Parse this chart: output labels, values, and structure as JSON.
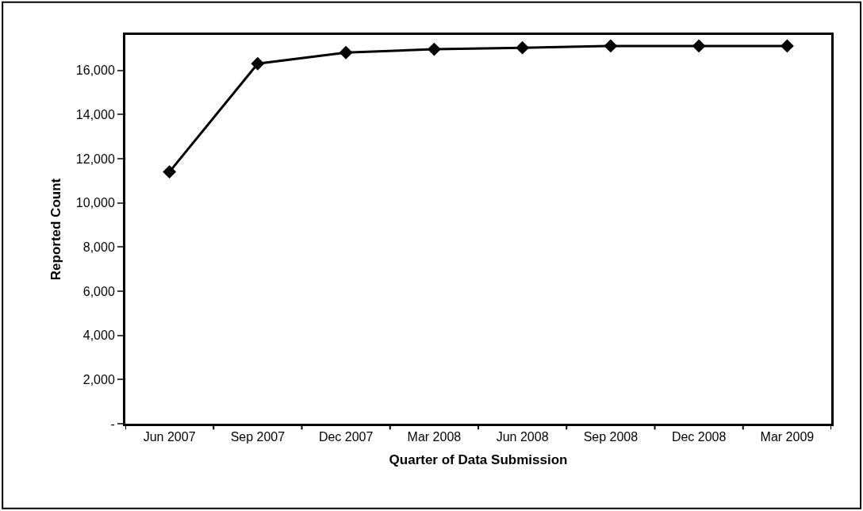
{
  "chart_data": {
    "type": "line",
    "xlabel": "Quarter of Data Submission",
    "ylabel": "Reported Count",
    "categories": [
      "Jun 2007",
      "Sep 2007",
      "Dec 2007",
      "Mar 2008",
      "Jun 2008",
      "Sep 2008",
      "Dec 2008",
      "Mar 2009"
    ],
    "series": [
      {
        "color": "#000000",
        "values": [
          11400,
          16300,
          16800,
          16950,
          17020,
          17100,
          17100,
          17100
        ]
      }
    ],
    "ylim": [
      0,
      17600
    ],
    "yticks": [
      {
        "value": 0,
        "label": "-"
      },
      {
        "value": 2000,
        "label": "2,000"
      },
      {
        "value": 4000,
        "label": "4,000"
      },
      {
        "value": 6000,
        "label": "6,000"
      },
      {
        "value": 8000,
        "label": "8,000"
      },
      {
        "value": 10000,
        "label": "10,000"
      },
      {
        "value": 12000,
        "label": "12,000"
      },
      {
        "value": 14000,
        "label": "14,000"
      },
      {
        "value": 16000,
        "label": "16,000"
      }
    ],
    "marker": "diamond",
    "line_style": "solid",
    "legend": false
  }
}
